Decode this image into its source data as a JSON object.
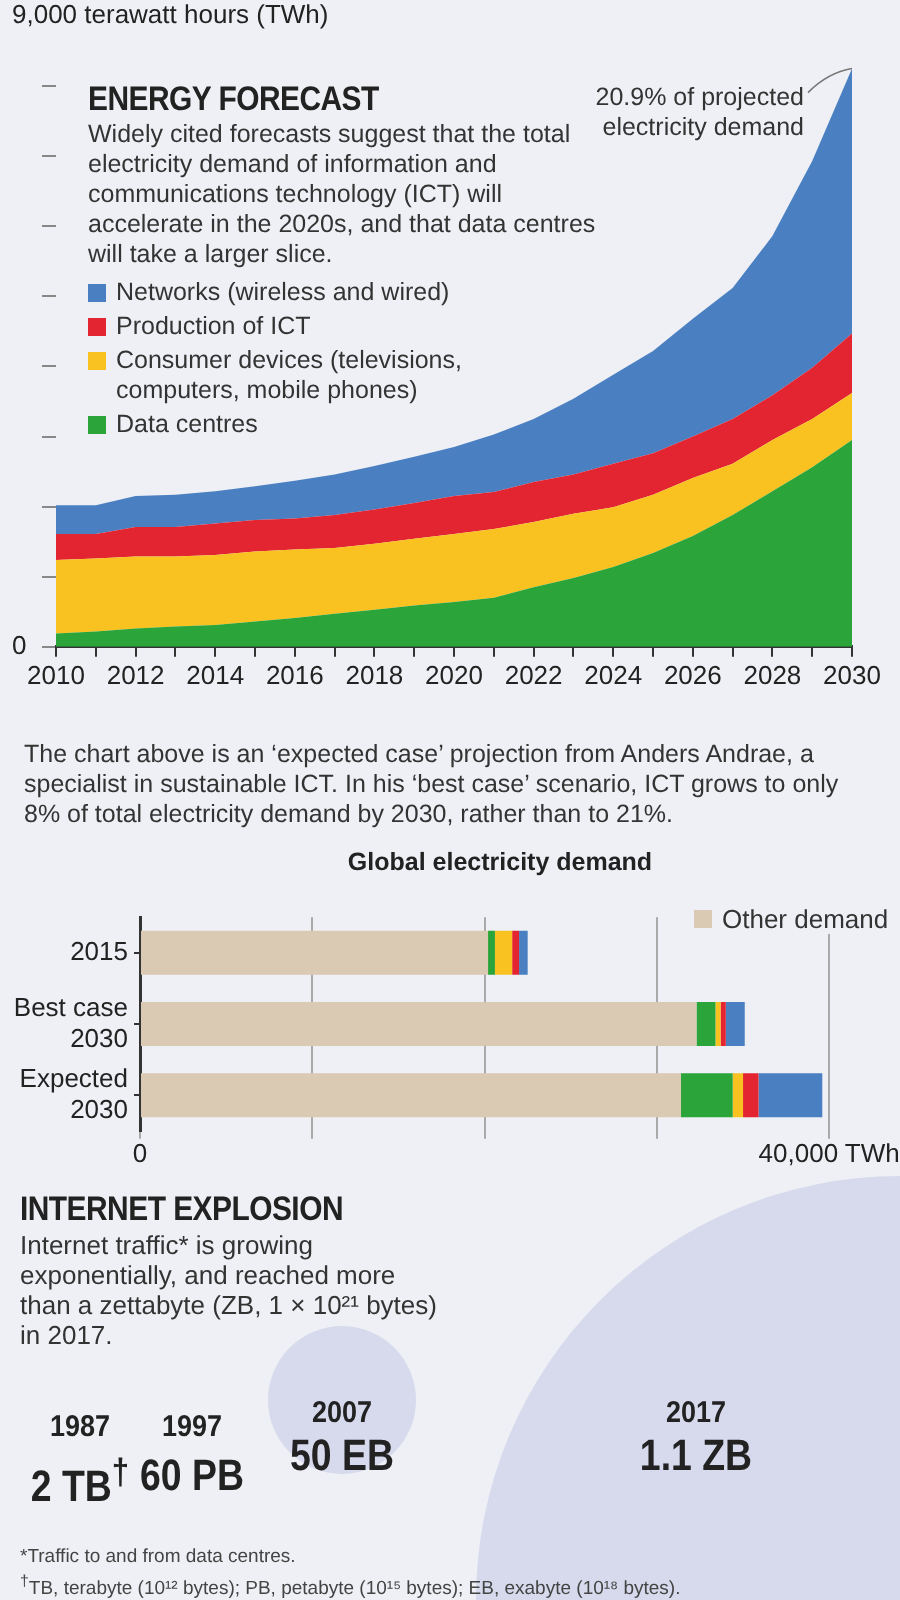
{
  "chart_data": [
    {
      "type": "area",
      "title": "ENERGY FORECAST",
      "subtitle": "Widely cited forecasts suggest that the total electricity demand of information and communications technology (ICT) will accelerate in the 2020s, and that data centres will take a larger slice.",
      "x": [
        2010,
        2011,
        2012,
        2013,
        2014,
        2015,
        2016,
        2017,
        2018,
        2019,
        2020,
        2021,
        2022,
        2023,
        2024,
        2025,
        2026,
        2027,
        2028,
        2029,
        2030
      ],
      "series": [
        {
          "name": "Data centres",
          "color": "#2ba43a",
          "values": [
            190,
            220,
            260,
            290,
            310,
            360,
            410,
            470,
            530,
            590,
            640,
            700,
            850,
            980,
            1140,
            1340,
            1580,
            1880,
            2220,
            2560,
            2950
          ]
        },
        {
          "name": "Consumer devices (televisions, computers, mobile phones)",
          "color": "#f9c221",
          "values": [
            1050,
            1040,
            1030,
            1000,
            1000,
            1000,
            980,
            940,
            940,
            950,
            970,
            980,
            930,
            920,
            850,
            830,
            830,
            730,
            730,
            690,
            670
          ]
        },
        {
          "name": "Production of ICT",
          "color": "#e32532",
          "values": [
            370,
            350,
            420,
            420,
            450,
            450,
            440,
            470,
            490,
            510,
            540,
            530,
            570,
            560,
            620,
            590,
            590,
            640,
            640,
            730,
            850
          ]
        },
        {
          "name": "Networks (wireless and wired)",
          "color": "#4a7fc1",
          "values": [
            410,
            410,
            440,
            460,
            460,
            480,
            540,
            580,
            620,
            660,
            700,
            820,
            900,
            1080,
            1270,
            1460,
            1680,
            1870,
            2270,
            2950,
            3780
          ]
        }
      ],
      "stacked": true,
      "marker": "none",
      "legend": "left",
      "grid": false,
      "xlim": [
        2010,
        2030
      ],
      "xticks": [
        2010,
        {
          "value": 2011,
          "label": null
        },
        2012,
        {
          "value": 2013,
          "label": null
        },
        2014,
        {
          "value": 2015,
          "label": null
        },
        2016,
        {
          "value": 2017,
          "label": null
        },
        2018,
        {
          "value": 2019,
          "label": null
        },
        2020,
        {
          "value": 2021,
          "label": null
        },
        2022,
        {
          "value": 2023,
          "label": null
        },
        2024,
        {
          "value": 2025,
          "label": null
        },
        2026,
        {
          "value": 2027,
          "label": null
        },
        2028,
        {
          "value": 2029,
          "label": null
        },
        2030
      ],
      "ylim": [
        0,
        9000
      ],
      "yticks": [
        0,
        {
          "value": 1000,
          "label": null
        },
        {
          "value": 2000,
          "label": null
        },
        {
          "value": 3000,
          "label": null
        },
        {
          "value": 4000,
          "label": null
        },
        {
          "value": 5000,
          "label": null
        },
        {
          "value": 6000,
          "label": null
        },
        {
          "value": 7000,
          "label": null
        },
        {
          "value": 8000,
          "label": null
        },
        {
          "value": 9000,
          "label": "9,000 terawatt hours (TWh)"
        }
      ],
      "annotations": [
        {
          "text": "20.9% of projected electricity demand",
          "x": 2030,
          "y": 8250
        },
        "The chart above is an ‘expected case’ projection from Anders Andrae, a specialist in sustainable ICT. In his ‘best case’ scenario, ICT grows to only 8% of total electricity demand by 2030, rather than to 21%."
      ]
    },
    {
      "type": "bar",
      "orientation": "horizontal",
      "stacked": true,
      "title": "Global electricity demand",
      "categories": [
        "2015",
        "Best case 2030",
        "Expected 2030"
      ],
      "series": [
        {
          "name": "Other demand",
          "color": "#dac9b3",
          "values": [
            20200,
            32300,
            31400
          ]
        },
        {
          "color": "#2ba43a",
          "values": [
            400,
            1100,
            3000
          ]
        },
        {
          "color": "#f9c221",
          "values": [
            1000,
            300,
            600
          ]
        },
        {
          "color": "#e32532",
          "values": [
            400,
            300,
            900
          ]
        },
        {
          "color": "#4a7fc1",
          "values": [
            500,
            1100,
            3700
          ]
        }
      ],
      "xlim": [
        0,
        40000
      ],
      "xticks": [
        0,
        {
          "value": 10000,
          "label": null
        },
        {
          "value": 20000,
          "label": null
        },
        {
          "value": 30000,
          "label": null
        },
        {
          "value": 40000,
          "label": "40,000 TWh"
        }
      ],
      "grid": "x",
      "legend": "top right"
    },
    {
      "type": "other",
      "title": "INTERNET EXPLOSION",
      "subtitle": "Internet traffic* is growing exponentially, and reached more than a zettabyte (ZB, 1 × 10²¹ bytes) in 2017.",
      "categories": [
        "1987",
        "1997",
        "2007",
        "2017"
      ],
      "value_labels": [
        "2 TB$^{†}$",
        "60 PB",
        "50 EB",
        "1.1 ZB"
      ],
      "annotations": [
        "*Traffic to and from data centres.",
        "$^{†}$TB, terabyte (10¹² bytes); PB, petabyte (10¹⁵ bytes); EB, exabyte (10¹⁸ bytes)."
      ]
    }
  ]
}
